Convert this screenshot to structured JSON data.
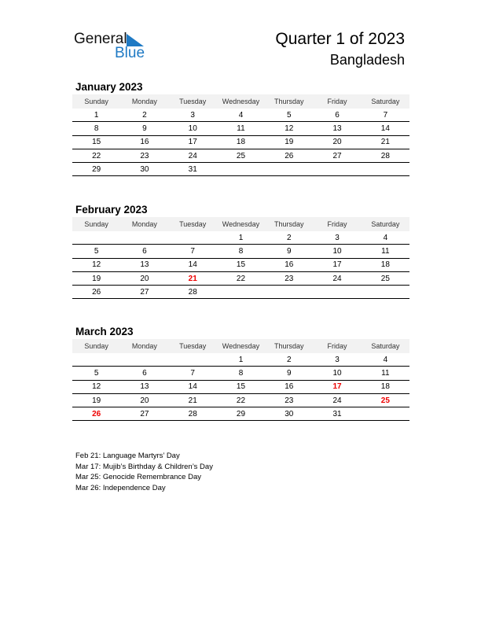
{
  "logo": {
    "word1": "General",
    "word2": "Blue",
    "accent": "#1f7ac4"
  },
  "header": {
    "title": "Quarter 1 of 2023",
    "country": "Bangladesh"
  },
  "weekdays": [
    "Sunday",
    "Monday",
    "Tuesday",
    "Wednesday",
    "Thursday",
    "Friday",
    "Saturday"
  ],
  "holiday_color": "#e00000",
  "months": [
    {
      "title": "January 2023",
      "weeks": [
        [
          "1",
          "2",
          "3",
          "4",
          "5",
          "6",
          "7"
        ],
        [
          "8",
          "9",
          "10",
          "11",
          "12",
          "13",
          "14"
        ],
        [
          "15",
          "16",
          "17",
          "18",
          "19",
          "20",
          "21"
        ],
        [
          "22",
          "23",
          "24",
          "25",
          "26",
          "27",
          "28"
        ],
        [
          "29",
          "30",
          "31",
          "",
          "",
          "",
          ""
        ]
      ],
      "holidays": []
    },
    {
      "title": "February 2023",
      "weeks": [
        [
          "",
          "",
          "",
          "1",
          "2",
          "3",
          "4"
        ],
        [
          "5",
          "6",
          "7",
          "8",
          "9",
          "10",
          "11"
        ],
        [
          "12",
          "13",
          "14",
          "15",
          "16",
          "17",
          "18"
        ],
        [
          "19",
          "20",
          "21",
          "22",
          "23",
          "24",
          "25"
        ],
        [
          "26",
          "27",
          "28",
          "",
          "",
          "",
          ""
        ]
      ],
      "holidays": [
        "21"
      ]
    },
    {
      "title": "March 2023",
      "weeks": [
        [
          "",
          "",
          "",
          "1",
          "2",
          "3",
          "4"
        ],
        [
          "5",
          "6",
          "7",
          "8",
          "9",
          "10",
          "11"
        ],
        [
          "12",
          "13",
          "14",
          "15",
          "16",
          "17",
          "18"
        ],
        [
          "19",
          "20",
          "21",
          "22",
          "23",
          "24",
          "25"
        ],
        [
          "26",
          "27",
          "28",
          "29",
          "30",
          "31",
          ""
        ]
      ],
      "holidays": [
        "17",
        "25",
        "26"
      ]
    }
  ],
  "holiday_notes": [
    "Feb 21: Language Martyrs’ Day",
    "Mar 17: Mujib’s Birthday & Children’s Day",
    "Mar 25: Genocide Remembrance Day",
    "Mar 26: Independence Day"
  ]
}
